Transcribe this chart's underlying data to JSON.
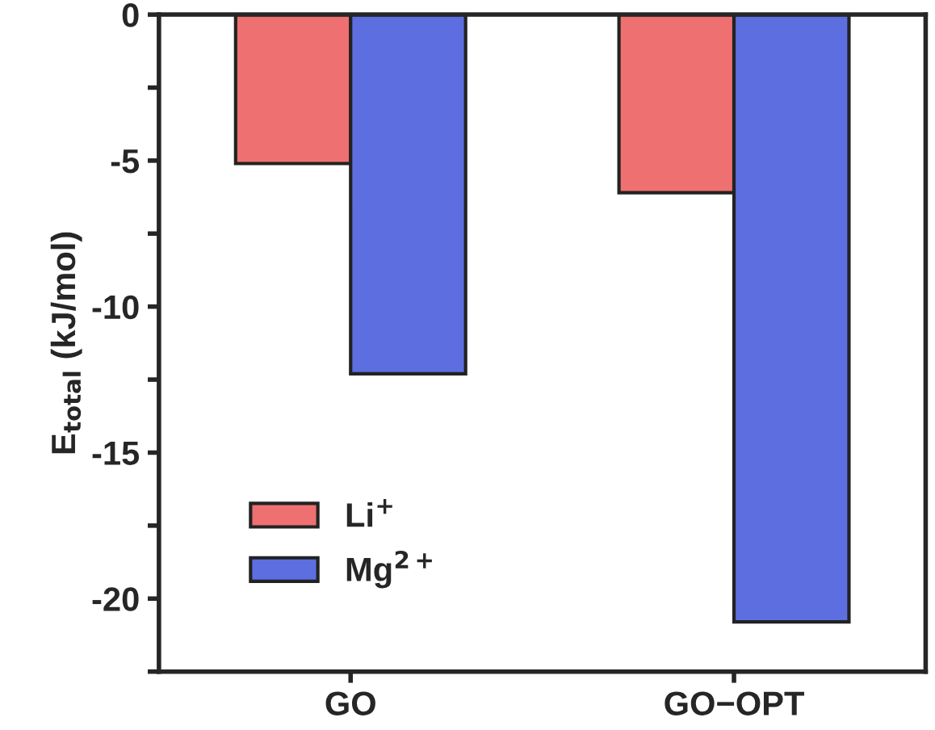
{
  "chart_data": {
    "type": "bar",
    "ylabel": "E$_{total}$ (kJ/mol)",
    "categories": [
      "GO",
      "GO−OPT"
    ],
    "series": [
      {
        "name": "Li$^{+}$",
        "color": "#ee7070",
        "values": [
          -5.1,
          -6.1
        ]
      },
      {
        "name": "Mg$^{2+}$",
        "color": "#5d6ee0",
        "values": [
          -12.3,
          -20.8
        ]
      }
    ],
    "ylim": [
      -22.5,
      0
    ],
    "yticks": [
      0,
      {
        "value": -2.5,
        "label": null
      },
      -5,
      {
        "value": -7.5,
        "label": null
      },
      -10,
      {
        "value": -12.5,
        "label": null
      },
      -15,
      {
        "value": -17.5,
        "label": null
      },
      -20,
      {
        "value": -22.5,
        "label": null
      }
    ],
    "legend": "bottom left",
    "grid": false
  }
}
